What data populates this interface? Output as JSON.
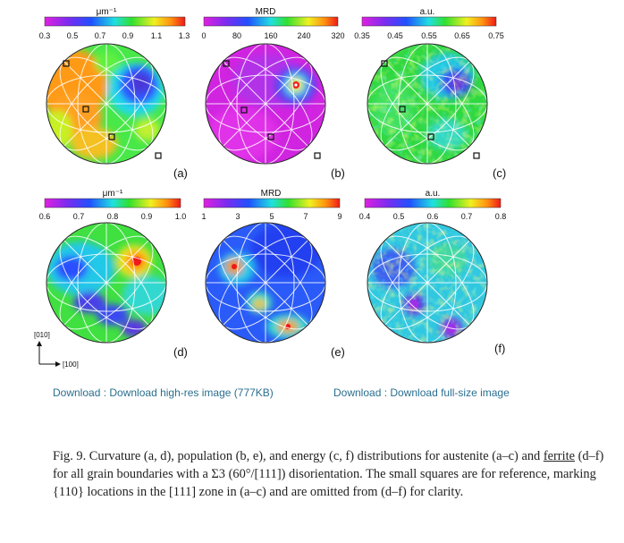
{
  "figure": {
    "panels": [
      {
        "id": "a",
        "label": "(a)",
        "unit": "μm⁻¹",
        "ticks": [
          "0.3",
          "0.5",
          "0.7",
          "0.9",
          "1.1",
          "1.3"
        ],
        "colorbar": "rainbow",
        "reference_squares": true
      },
      {
        "id": "b",
        "label": "(b)",
        "unit": "MRD",
        "ticks": [
          "0",
          "80",
          "160",
          "240",
          "320"
        ],
        "colorbar": "rainbow",
        "reference_squares": true
      },
      {
        "id": "c",
        "label": "(c)",
        "unit": "a.u.",
        "ticks": [
          "0.35",
          "0.45",
          "0.55",
          "0.65",
          "0.75"
        ],
        "colorbar": "rainbow",
        "reference_squares": true
      },
      {
        "id": "d",
        "label": "(d)",
        "unit": "μm⁻¹",
        "ticks": [
          "0.6",
          "0.7",
          "0.8",
          "0.9",
          "1.0"
        ],
        "colorbar": "rainbow",
        "reference_squares": false
      },
      {
        "id": "e",
        "label": "(e)",
        "unit": "MRD",
        "ticks": [
          "1",
          "3",
          "5",
          "7",
          "9"
        ],
        "colorbar": "rainbow",
        "reference_squares": false
      },
      {
        "id": "f",
        "label": "(f)",
        "unit": "a.u.",
        "ticks": [
          "0.4",
          "0.5",
          "0.6",
          "0.7",
          "0.8"
        ],
        "colorbar": "rainbow",
        "reference_squares": false
      }
    ],
    "axes": {
      "y_label": "[010]",
      "x_label": "[100]"
    }
  },
  "downloads": {
    "hires": "Download : Download high-res image (777KB)",
    "full": "Download : Download full-size image"
  },
  "caption": {
    "part1": "Fig. 9. Curvature (a, d), population (b, e), and energy (c, f) distributions for austenite (a–c) and ",
    "link": "ferrite",
    "part2": " (d–f) for all grain boundaries with a Σ3 (60°/[111]) disorientation. The small squares are for reference, marking {110} locations in the [111] zone in (a–c) and are omitted from (d–f) for clarity."
  },
  "colors": {
    "link": "#2a6f8f",
    "caption_text": "#222222"
  }
}
